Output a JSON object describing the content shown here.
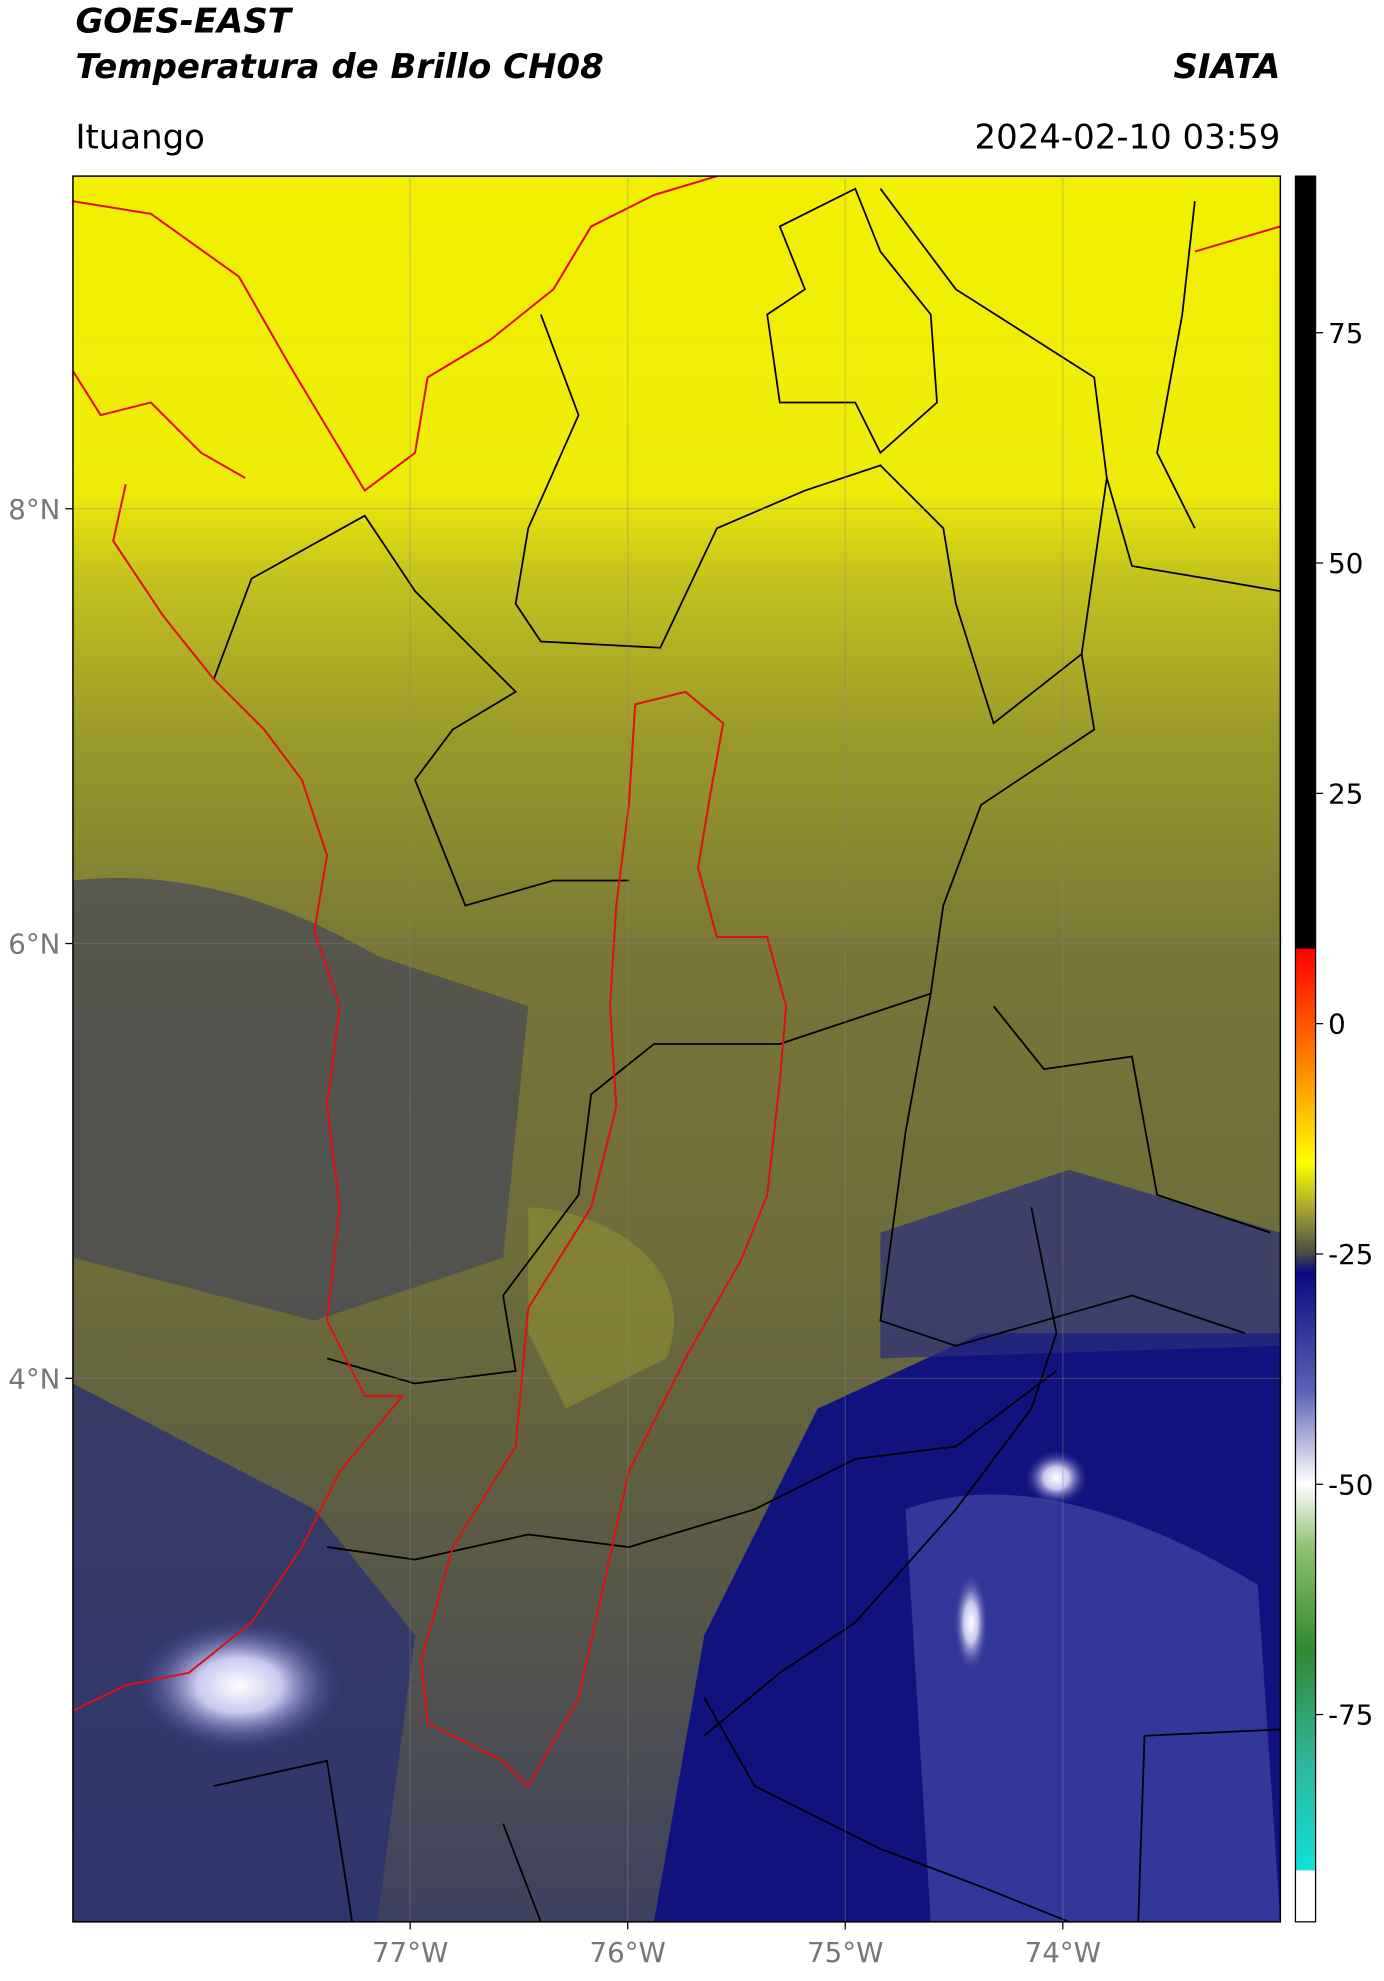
{
  "header": {
    "title": "GOES-EAST",
    "subtitle": "Temperatura de Brillo CH08",
    "source": "SIATA",
    "location": "Ituango",
    "datetime": "2024-02-10 03:59"
  },
  "map": {
    "xlim": [
      -78.55,
      -73
    ],
    "ylim": [
      1.5,
      9.53
    ],
    "xticks": [
      {
        "value": -77,
        "label": "77°W"
      },
      {
        "value": -76,
        "label": "76°W"
      },
      {
        "value": -75,
        "label": "75°W"
      },
      {
        "value": -74,
        "label": "74°W"
      }
    ],
    "yticks": [
      {
        "value": 8,
        "label": "8°N"
      },
      {
        "value": 6,
        "label": "6°N"
      },
      {
        "value": 4,
        "label": "4°N"
      }
    ]
  },
  "colorbar": {
    "lim": [
      -97.5,
      92
    ],
    "ticks": [
      75,
      50,
      25,
      0,
      -25,
      -50,
      -75
    ]
  }
}
